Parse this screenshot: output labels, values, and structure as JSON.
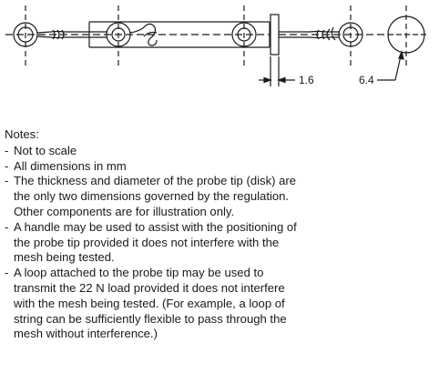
{
  "diagram": {
    "dimensions": {
      "tip_thickness": "1.6",
      "tip_diameter": "6.4"
    },
    "colors": {
      "line": "#1a1a1a",
      "background": "#ffffff"
    }
  },
  "notes": {
    "title": "Notes:",
    "items": [
      "Not to scale",
      "All dimensions in mm",
      "The thickness and diameter of the probe tip (disk) are the only two dimensions governed by the regulation.  Other components are for illustration only.",
      "A handle may be used to assist with the positioning of the probe tip provided it does not interfere with the mesh being tested.",
      "A loop attached to the probe tip may be used to transmit the 22 N load provided it does not interfere with the mesh being tested.  (For example, a loop of string can be sufficiently flexible to pass through the mesh without interference.)"
    ]
  }
}
